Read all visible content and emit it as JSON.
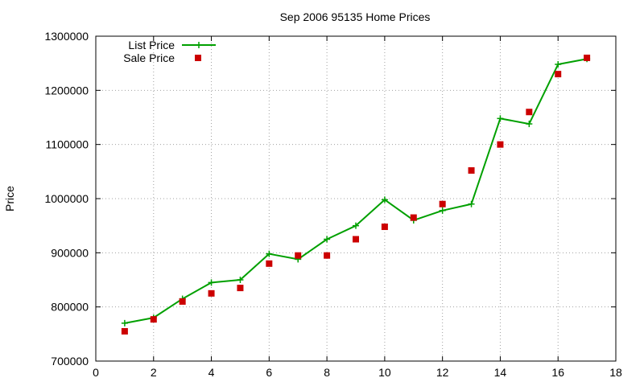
{
  "chart_data": {
    "type": "line",
    "title": "Sep 2006 95135 Home Prices",
    "xlabel": "",
    "ylabel": "Price",
    "xlim": [
      0,
      18
    ],
    "ylim": [
      700000,
      1300000
    ],
    "x_ticks": [
      0,
      2,
      4,
      6,
      8,
      10,
      12,
      14,
      16,
      18
    ],
    "y_ticks": [
      700000,
      800000,
      900000,
      1000000,
      1100000,
      1200000,
      1300000
    ],
    "grid": true,
    "legend_position": "top-left",
    "series": [
      {
        "name": "List Price",
        "style": "line-with-plus-markers",
        "color": "#00a000",
        "x": [
          1,
          2,
          3,
          4,
          5,
          6,
          7,
          8,
          9,
          10,
          11,
          12,
          13,
          14,
          15,
          16,
          17
        ],
        "values": [
          770000,
          780000,
          815000,
          845000,
          850000,
          898000,
          888000,
          925000,
          950000,
          998000,
          960000,
          978000,
          990000,
          1148000,
          1138000,
          1248000,
          1258000
        ]
      },
      {
        "name": "Sale Price",
        "style": "square-markers",
        "color": "#cc0000",
        "x": [
          1,
          2,
          3,
          4,
          5,
          6,
          7,
          8,
          9,
          10,
          11,
          12,
          13,
          14,
          15,
          16,
          17
        ],
        "values": [
          755000,
          777000,
          810000,
          825000,
          835000,
          880000,
          895000,
          895000,
          925000,
          948000,
          965000,
          990000,
          1052000,
          1100000,
          1160000,
          1230000,
          1260000
        ]
      }
    ]
  }
}
